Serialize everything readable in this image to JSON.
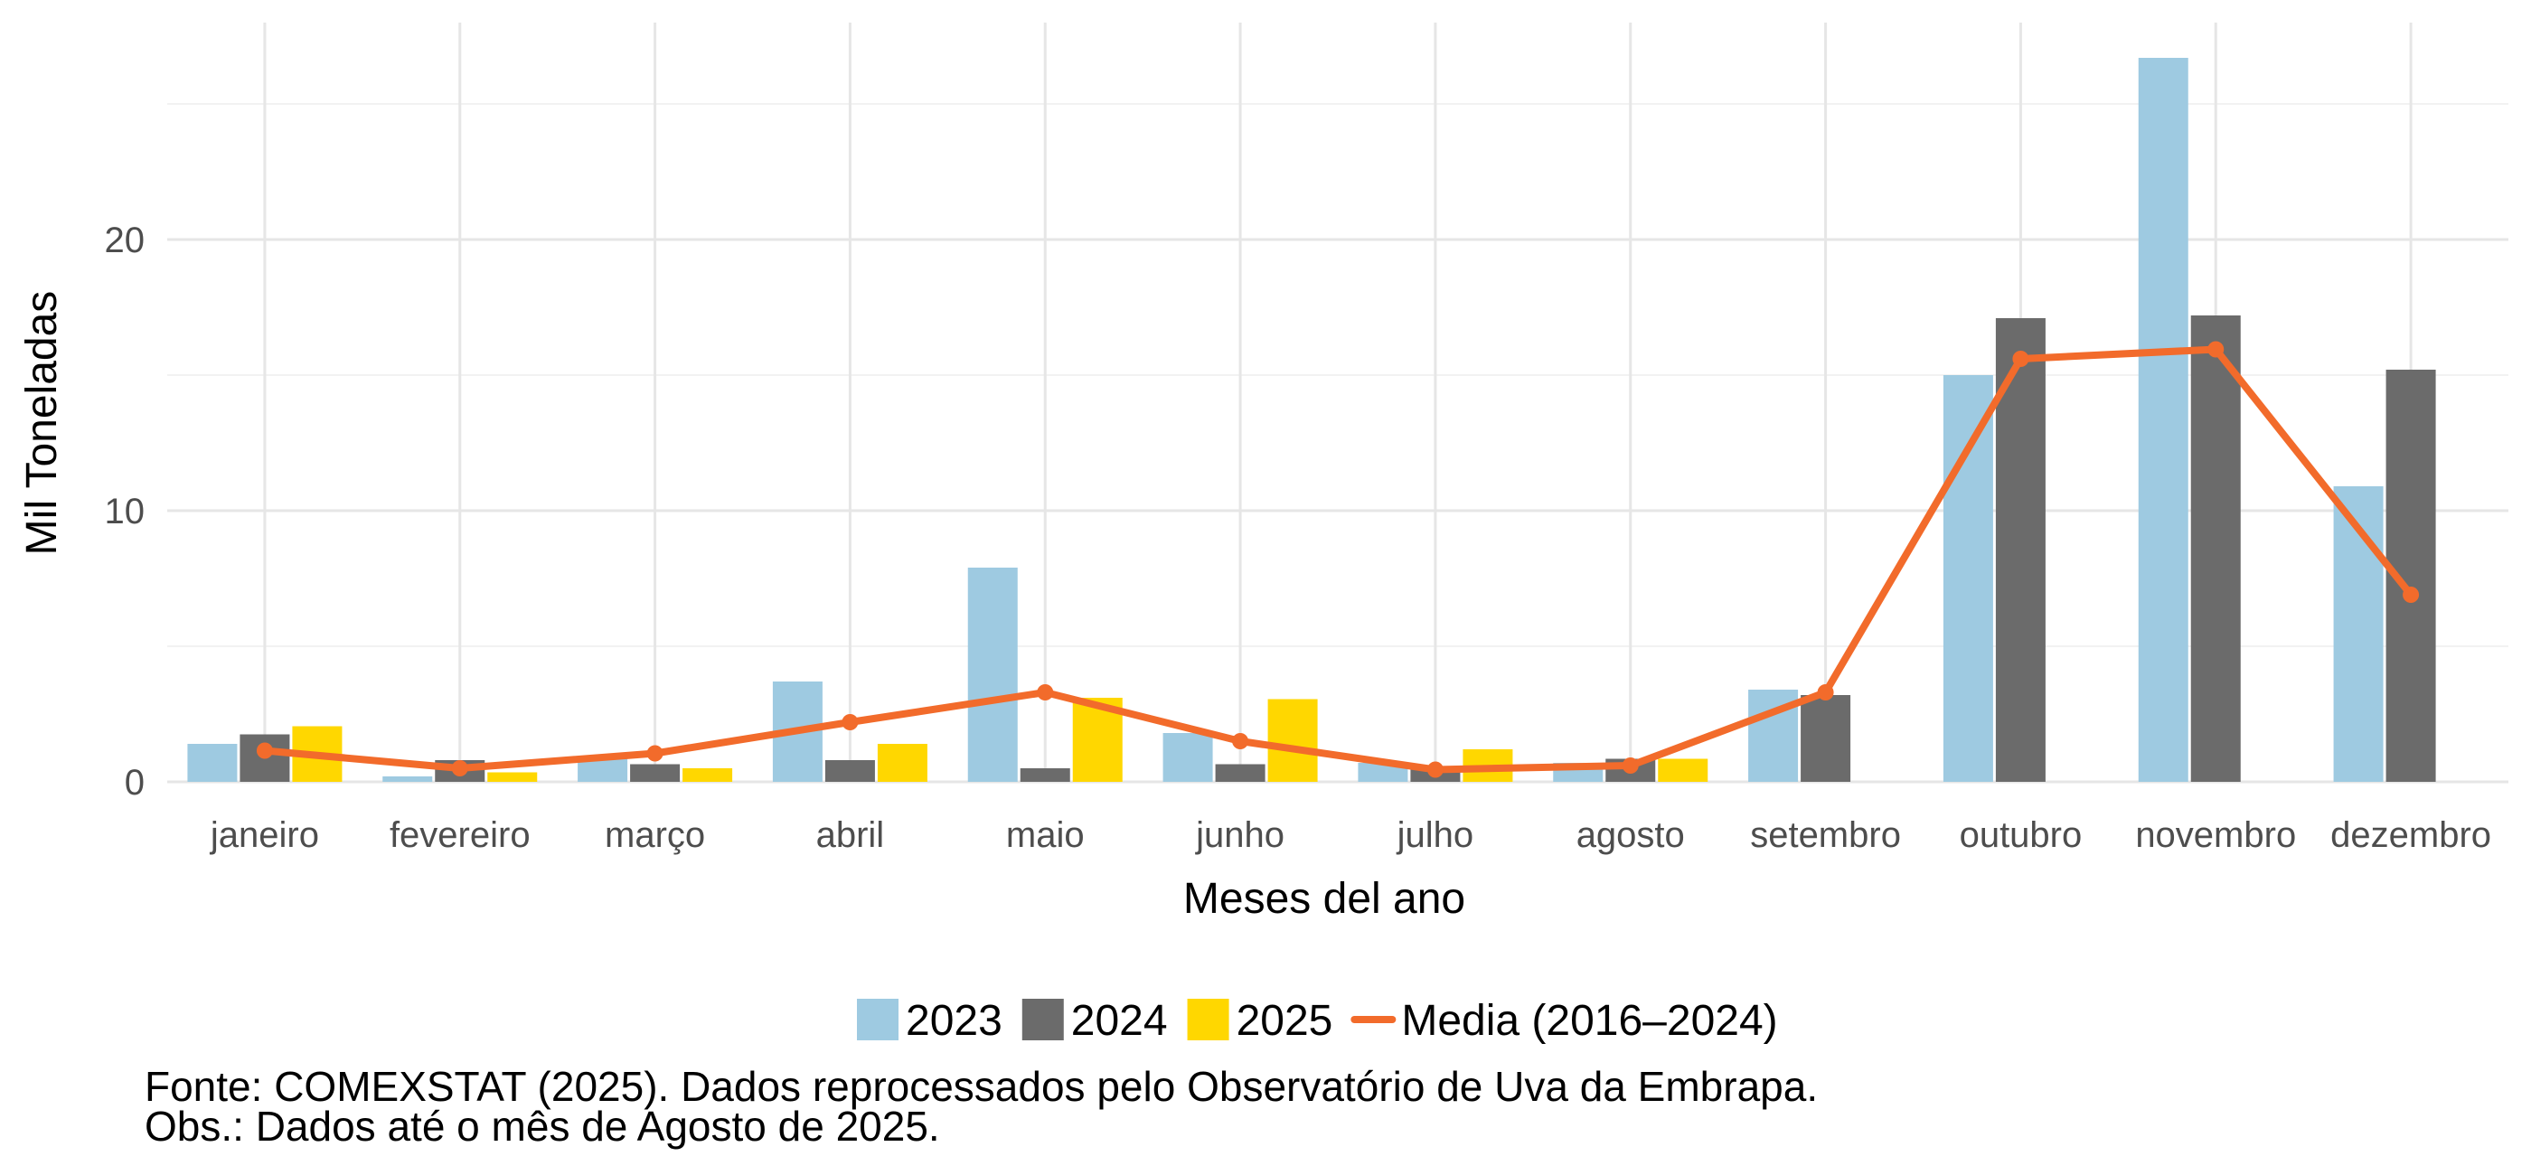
{
  "chart_data": {
    "type": "bar",
    "title": "",
    "xlabel": "Meses del ano",
    "ylabel": "Mil Toneladas",
    "ylim": [
      0,
      28
    ],
    "yticks": [
      0,
      10,
      20
    ],
    "grid": true,
    "legend_position": "bottom",
    "categories": [
      "janeiro",
      "fevereiro",
      "março",
      "abril",
      "maio",
      "junho",
      "julho",
      "agosto",
      "setembro",
      "outubro",
      "novembro",
      "dezembro"
    ],
    "series": [
      {
        "name": "2023",
        "type": "bar",
        "color": "#9ecae1",
        "values": [
          1.4,
          0.2,
          0.9,
          3.7,
          7.9,
          1.8,
          0.7,
          0.7,
          3.4,
          15.0,
          26.7,
          10.9
        ]
      },
      {
        "name": "2024",
        "type": "bar",
        "color": "#6b6b6b",
        "values": [
          1.75,
          0.8,
          0.65,
          0.8,
          0.5,
          0.65,
          0.45,
          0.85,
          3.2,
          17.1,
          17.2,
          15.2
        ]
      },
      {
        "name": "2025",
        "type": "bar",
        "color": "#ffd700",
        "values": [
          2.05,
          0.35,
          0.5,
          1.4,
          3.1,
          3.05,
          1.2,
          0.85,
          null,
          null,
          null,
          null
        ]
      },
      {
        "name": "Media (2016–2024)",
        "type": "line",
        "color": "#f26b2b",
        "values": [
          1.15,
          0.5,
          1.05,
          2.2,
          3.3,
          1.5,
          0.45,
          0.6,
          3.3,
          15.6,
          15.95,
          6.9
        ]
      }
    ],
    "caption_lines": [
      "Fonte: COMEXSTAT (2025). Dados reprocessados pelo Observatório de Uva da Embrapa.",
      "Obs.: Dados até o mês de Agosto de 2025."
    ]
  }
}
